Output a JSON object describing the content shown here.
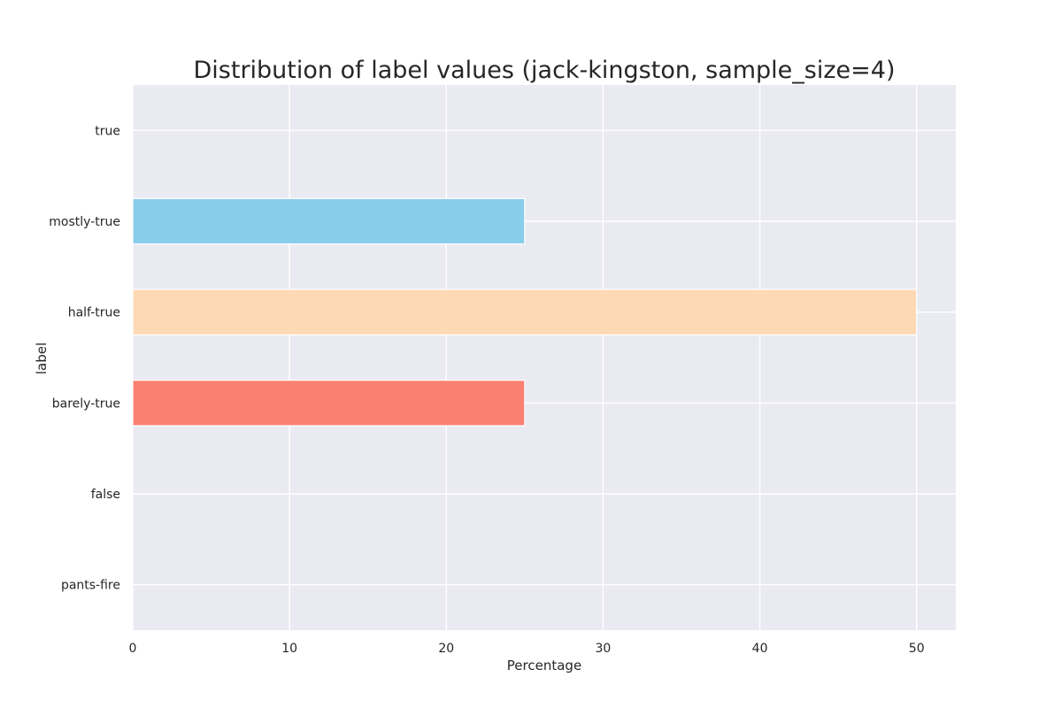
{
  "chart_data": {
    "type": "bar",
    "orientation": "horizontal",
    "title": "Distribution of label values (jack-kingston, sample_size=4)",
    "xlabel": "Percentage",
    "ylabel": "label",
    "categories": [
      "true",
      "mostly-true",
      "half-true",
      "barely-true",
      "false",
      "pants-fire"
    ],
    "values": [
      0,
      25,
      50,
      25,
      0,
      0
    ],
    "colors": [
      "#87ceeb",
      "#87ceeb",
      "#fdd9b5",
      "#fa8072",
      "#fa8072",
      "#fa8072"
    ],
    "xlim": [
      0,
      52.5
    ],
    "xticks": [
      0,
      10,
      20,
      30,
      40,
      50
    ],
    "grid": true,
    "background": "#eaeaf2",
    "grid_color": "#ffffff",
    "legend": "none"
  }
}
